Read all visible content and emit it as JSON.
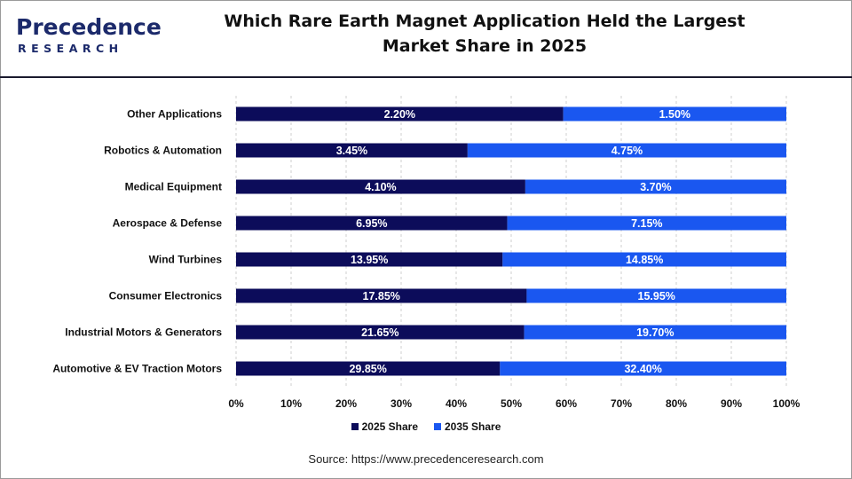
{
  "brand": {
    "logo_main_prefix": "P",
    "logo_main_rest": "recedence",
    "logo_sub": "RESEARCH"
  },
  "header": {
    "title_line1": "Which Rare Earth Magnet Application Held the Largest",
    "title_line2": "Market Share in 2025"
  },
  "colors": {
    "series_2025": "#0c0c5a",
    "series_2035": "#1a57f0",
    "grid": "#cfcfcf",
    "label_text": "#ffffff"
  },
  "chart_data": {
    "type": "bar",
    "orientation": "horizontal",
    "stacked": "percent",
    "categories": [
      "Other Applications",
      "Robotics & Automation",
      "Medical Equipment",
      "Aerospace & Defense",
      "Wind Turbines",
      "Consumer Electronics",
      "Industrial Motors & Generators",
      "Automotive & EV Traction Motors"
    ],
    "series": [
      {
        "name": "2025 Share",
        "values": [
          2.2,
          3.45,
          4.1,
          6.95,
          13.95,
          17.85,
          21.65,
          29.85
        ],
        "labels": [
          "2.20%",
          "3.45%",
          "4.10%",
          "6.95%",
          "13.95%",
          "17.85%",
          "21.65%",
          "29.85%"
        ]
      },
      {
        "name": "2035 Share",
        "values": [
          1.5,
          4.75,
          3.7,
          7.15,
          14.85,
          15.95,
          19.7,
          32.4
        ],
        "labels": [
          "1.50%",
          "4.75%",
          "3.70%",
          "7.15%",
          "14.85%",
          "15.95%",
          "19.70%",
          "32.40%"
        ]
      }
    ],
    "x_ticks": [
      "0%",
      "10%",
      "20%",
      "30%",
      "40%",
      "50%",
      "60%",
      "70%",
      "80%",
      "90%",
      "100%"
    ],
    "xlim": [
      0,
      100
    ],
    "grid": true,
    "legend_position": "bottom"
  },
  "source": "Source: https://www.precedenceresearch.com"
}
